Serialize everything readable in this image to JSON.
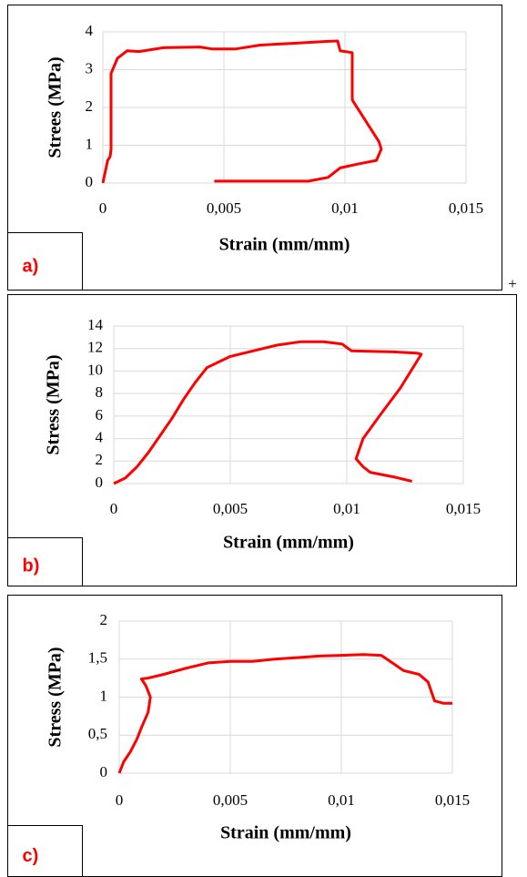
{
  "chart_data": [
    {
      "type": "line",
      "label": "a)",
      "y_label": "Strees (MPa)",
      "x_label": "Strain (mm/mm)",
      "color": "#ff0000",
      "grid": true,
      "xlim": [
        0,
        0.015
      ],
      "ylim": [
        0,
        4
      ],
      "xticks": [
        0,
        {
          "value": 0.005,
          "label": "0,005"
        },
        {
          "value": 0.01,
          "label": "0,01"
        },
        {
          "value": 0.015,
          "label": "0,015"
        }
      ],
      "yticks": [
        0,
        1,
        2,
        3,
        4
      ],
      "x": [
        0,
        0.0002,
        0.0003,
        0.00034,
        0.00034,
        0.0006,
        0.001,
        0.0015,
        0.0025,
        0.004,
        0.0045,
        0.0055,
        0.0065,
        0.008,
        0.0093,
        0.0097,
        0.0098,
        0.0103,
        0.0103,
        0.0106,
        0.011,
        0.0114,
        0.0115,
        0.0113,
        0.0105,
        0.0098,
        0.0093,
        0.0085,
        0.0046
      ],
      "values": [
        0,
        0.6,
        0.7,
        0.9,
        2.9,
        3.3,
        3.5,
        3.48,
        3.58,
        3.6,
        3.55,
        3.55,
        3.65,
        3.7,
        3.75,
        3.76,
        3.5,
        3.45,
        2.2,
        1.9,
        1.5,
        1.1,
        0.9,
        0.6,
        0.5,
        0.4,
        0.15,
        0.05,
        0.05
      ]
    },
    {
      "type": "line",
      "label": "b)",
      "y_label": "Stress (MPa)",
      "x_label": "Strain (mm/mm)",
      "color": "#ff0000",
      "grid": true,
      "xlim": [
        0,
        0.015
      ],
      "ylim": [
        0,
        14
      ],
      "xticks": [
        0,
        {
          "value": 0.005,
          "label": "0,005"
        },
        {
          "value": 0.01,
          "label": "0,01"
        },
        {
          "value": 0.015,
          "label": "0,015"
        }
      ],
      "yticks": [
        0,
        2,
        4,
        6,
        8,
        10,
        12,
        14
      ],
      "x": [
        0,
        0.0005,
        0.001,
        0.0015,
        0.002,
        0.0025,
        0.003,
        0.0035,
        0.004,
        0.0045,
        0.005,
        0.006,
        0.007,
        0.008,
        0.009,
        0.0098,
        0.0102,
        0.011,
        0.012,
        0.013,
        0.0132,
        0.0123,
        0.0114,
        0.0107,
        0.0104,
        0.0107,
        0.011,
        0.012,
        0.0128
      ],
      "values": [
        0,
        0.5,
        1.5,
        2.8,
        4.3,
        5.8,
        7.5,
        9,
        10.3,
        10.8,
        11.3,
        11.8,
        12.3,
        12.6,
        12.6,
        12.4,
        11.8,
        11.75,
        11.7,
        11.6,
        11.5,
        8.5,
        6,
        4,
        2.2,
        1.5,
        1,
        0.6,
        0.2
      ]
    },
    {
      "type": "line",
      "label": "c)",
      "y_label": "Stress (MPa)",
      "x_label": "Strain (mm/mm)",
      "color": "#ff0000",
      "grid": true,
      "xlim": [
        0,
        0.015
      ],
      "ylim": [
        0,
        2
      ],
      "xticks": [
        0,
        {
          "value": 0.005,
          "label": "0,005"
        },
        {
          "value": 0.01,
          "label": "0,01"
        },
        {
          "value": 0.015,
          "label": "0,015"
        }
      ],
      "yticks": [
        0,
        {
          "value": 0.5,
          "label": "0,5"
        },
        1,
        {
          "value": 1.5,
          "label": "1,5"
        },
        2
      ],
      "x": [
        0,
        0.0002,
        0.0005,
        0.0008,
        0.001,
        0.0013,
        0.0014,
        0.0012,
        0.001,
        0.0013,
        0.002,
        0.003,
        0.004,
        0.005,
        0.006,
        0.007,
        0.008,
        0.009,
        0.01,
        0.011,
        0.0118,
        0.0123,
        0.0128,
        0.0135,
        0.0139,
        0.0142,
        0.0146,
        0.015
      ],
      "values": [
        0,
        0.15,
        0.28,
        0.45,
        0.6,
        0.8,
        1.0,
        1.15,
        1.24,
        1.25,
        1.3,
        1.38,
        1.45,
        1.47,
        1.47,
        1.5,
        1.52,
        1.54,
        1.55,
        1.56,
        1.55,
        1.45,
        1.35,
        1.3,
        1.2,
        0.95,
        0.92,
        0.92
      ]
    }
  ],
  "table_marker": "+"
}
